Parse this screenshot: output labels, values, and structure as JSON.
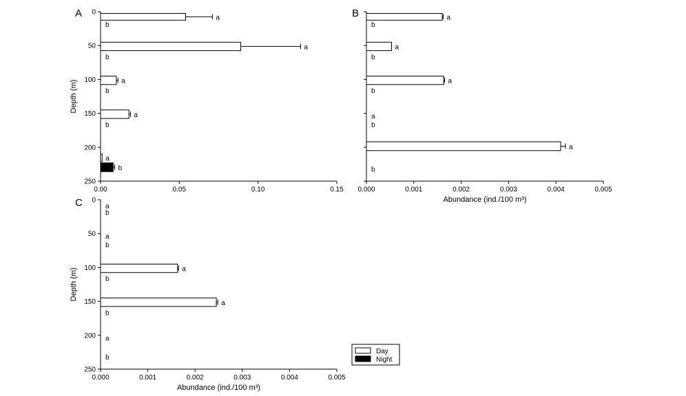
{
  "chart_data": [
    {
      "panel": "A",
      "type": "bar",
      "orientation": "horizontal",
      "ylabel": "Depth (m)",
      "xlabel": "",
      "xlim": [
        0,
        0.15
      ],
      "ylim": [
        0,
        250
      ],
      "xticks": [
        "0.00",
        "0.05",
        "0.10",
        "0.15"
      ],
      "yticks": [
        "0",
        "50",
        "100",
        "150",
        "200",
        "250"
      ],
      "bars": [
        {
          "series": "Day",
          "depth_from": 2.5,
          "depth_to": 12.5,
          "value": 0.054,
          "error": 0.017,
          "sig": "a"
        },
        {
          "series": "Night",
          "depth_from": 12.5,
          "depth_to": 22.5,
          "value": 0,
          "error": 0,
          "sig": "b"
        },
        {
          "series": "Day",
          "depth_from": 45,
          "depth_to": 57.5,
          "value": 0.089,
          "error": 0.038,
          "sig": "a"
        },
        {
          "series": "Night",
          "depth_from": 57.5,
          "depth_to": 70,
          "value": 0,
          "error": 0,
          "sig": "b"
        },
        {
          "series": "Day",
          "depth_from": 95,
          "depth_to": 107.5,
          "value": 0.01,
          "error": 0.001,
          "sig": "a"
        },
        {
          "series": "Night",
          "depth_from": 107.5,
          "depth_to": 120,
          "value": 0,
          "error": 0,
          "sig": "b"
        },
        {
          "series": "Day",
          "depth_from": 145,
          "depth_to": 157.5,
          "value": 0.018,
          "error": 0.001,
          "sig": "a"
        },
        {
          "series": "Night",
          "depth_from": 157.5,
          "depth_to": 170,
          "value": 0,
          "error": 0,
          "sig": "b"
        },
        {
          "series": "Day",
          "depth_from": 210,
          "depth_to": 221,
          "value": 0.001,
          "error": 0,
          "sig": "a"
        },
        {
          "series": "Night",
          "depth_from": 223,
          "depth_to": 236,
          "value": 0.008,
          "error": 0.001,
          "sig": "b"
        }
      ]
    },
    {
      "panel": "B",
      "type": "bar",
      "orientation": "horizontal",
      "ylabel": "",
      "xlabel": "Abundance (ind./100 m³)",
      "xlim": [
        0,
        0.005
      ],
      "ylim": [
        0,
        250
      ],
      "xticks": [
        "0.000",
        "0.001",
        "0.002",
        "0.003",
        "0.004",
        "0.005"
      ],
      "yticks": [],
      "bars": [
        {
          "series": "Day",
          "depth_from": 2.5,
          "depth_to": 12.5,
          "value": 0.0016,
          "error": 2e-05,
          "sig": "a"
        },
        {
          "series": "Night",
          "depth_from": 12.5,
          "depth_to": 22.5,
          "value": 0,
          "error": 0,
          "sig": "b"
        },
        {
          "series": "Day",
          "depth_from": 45,
          "depth_to": 57.5,
          "value": 0.00053,
          "error": 0,
          "sig": "a"
        },
        {
          "series": "Night",
          "depth_from": 57.5,
          "depth_to": 70,
          "value": 0,
          "error": 0,
          "sig": "b"
        },
        {
          "series": "Day",
          "depth_from": 95,
          "depth_to": 107.5,
          "value": 0.00163,
          "error": 2e-05,
          "sig": "a"
        },
        {
          "series": "Night",
          "depth_from": 107.5,
          "depth_to": 120,
          "value": 0,
          "error": 0,
          "sig": "b"
        },
        {
          "series": "Day",
          "depth_from": 145,
          "depth_to": 157.5,
          "value": 0,
          "error": 0,
          "sig": "a"
        },
        {
          "series": "Night",
          "depth_from": 157.5,
          "depth_to": 170,
          "value": 0,
          "error": 0,
          "sig": "b"
        },
        {
          "series": "Day",
          "depth_from": 192,
          "depth_to": 205,
          "value": 0.0041,
          "error": 0.0001,
          "sig": "a"
        },
        {
          "series": "Night",
          "depth_from": 218,
          "depth_to": 236,
          "value": 0,
          "error": 0,
          "sig": "b"
        }
      ]
    },
    {
      "panel": "C",
      "type": "bar",
      "orientation": "horizontal",
      "ylabel": "Depth (m)",
      "xlabel": "Abundance (ind./100 m³)",
      "xlim": [
        0,
        0.005
      ],
      "ylim": [
        0,
        250
      ],
      "xticks": [
        "0.000",
        "0.001",
        "0.002",
        "0.003",
        "0.004",
        "0.005"
      ],
      "yticks": [
        "0",
        "50",
        "100",
        "150",
        "200",
        "250"
      ],
      "bars": [
        {
          "series": "Day",
          "depth_from": 2.5,
          "depth_to": 12.5,
          "value": 0,
          "error": 0,
          "sig": "a"
        },
        {
          "series": "Night",
          "depth_from": 12.5,
          "depth_to": 22.5,
          "value": 0,
          "error": 0,
          "sig": "b"
        },
        {
          "series": "Day",
          "depth_from": 45,
          "depth_to": 57.5,
          "value": 0,
          "error": 0,
          "sig": "a"
        },
        {
          "series": "Night",
          "depth_from": 57.5,
          "depth_to": 70,
          "value": 0,
          "error": 0,
          "sig": "b"
        },
        {
          "series": "Day",
          "depth_from": 95,
          "depth_to": 107.5,
          "value": 0.00163,
          "error": 2e-05,
          "sig": "a"
        },
        {
          "series": "Night",
          "depth_from": 107.5,
          "depth_to": 120,
          "value": 0,
          "error": 0,
          "sig": "b"
        },
        {
          "series": "Day",
          "depth_from": 145,
          "depth_to": 157.5,
          "value": 0.00245,
          "error": 3e-05,
          "sig": "a"
        },
        {
          "series": "Night",
          "depth_from": 157.5,
          "depth_to": 170,
          "value": 0,
          "error": 0,
          "sig": "b"
        },
        {
          "series": "Day",
          "depth_from": 195,
          "depth_to": 208,
          "value": 0,
          "error": 0,
          "sig": "a"
        },
        {
          "series": "Night",
          "depth_from": 218,
          "depth_to": 236,
          "value": 0,
          "error": 0,
          "sig": "b"
        }
      ]
    }
  ],
  "legend": {
    "items": [
      {
        "label": "Day",
        "color": "#ffffff"
      },
      {
        "label": "Night",
        "color": "#000000"
      }
    ]
  },
  "colors": {
    "day": "#ffffff",
    "night": "#000000",
    "axis": "#000000"
  }
}
